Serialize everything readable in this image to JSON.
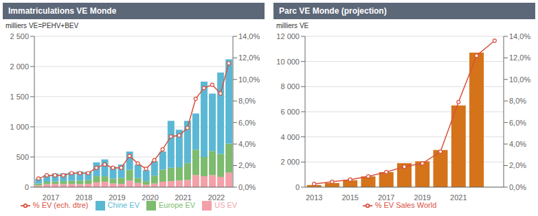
{
  "chart_data": [
    {
      "type": "bar",
      "title": "Immatriculations VE Monde",
      "ylabel": "milliers VE=PEHV+BEV",
      "categories": [
        null,
        "2017",
        null,
        null,
        null,
        "2018",
        null,
        null,
        null,
        "2019",
        null,
        null,
        null,
        "2020",
        null,
        null,
        null,
        "2021",
        null,
        null,
        null,
        "2022",
        null,
        null
      ],
      "series": [
        {
          "name": "US EV",
          "type": "bar",
          "color": "#f4a0a8",
          "values": [
            30,
            50,
            55,
            50,
            55,
            50,
            55,
            80,
            90,
            60,
            55,
            110,
            70,
            40,
            60,
            90,
            100,
            110,
            120,
            200,
            180,
            200,
            170,
            240
          ]
        },
        {
          "name": "Europe EV",
          "type": "bar",
          "color": "#7dbb6e",
          "values": [
            30,
            40,
            40,
            50,
            50,
            60,
            60,
            100,
            90,
            80,
            100,
            180,
            80,
            60,
            130,
            200,
            220,
            220,
            280,
            420,
            320,
            400,
            380,
            480
          ]
        },
        {
          "name": "Chine EV",
          "type": "bar",
          "color": "#5bb8d4",
          "values": [
            80,
            110,
            130,
            130,
            140,
            150,
            140,
            230,
            280,
            200,
            220,
            300,
            220,
            180,
            240,
            300,
            780,
            620,
            700,
            600,
            1250,
            950,
            1350,
            1400
          ]
        },
        {
          "name": "% EV (ech. dtre)",
          "type": "line",
          "axis": "y2",
          "color": "#d94f3d",
          "marker": "circle",
          "values": [
            0.008,
            0.011,
            0.011,
            0.011,
            0.013,
            0.013,
            0.013,
            0.018,
            0.021,
            0.018,
            0.018,
            0.029,
            0.022,
            0.017,
            0.025,
            0.035,
            0.047,
            0.048,
            0.055,
            0.082,
            0.092,
            0.095,
            0.087,
            0.115
          ]
        }
      ],
      "stacked": true,
      "ylim": [
        0,
        2500
      ],
      "yticks": [
        0,
        500,
        {
          "value": 1000,
          "label": "1 000"
        },
        {
          "value": 1500,
          "label": "1 500"
        },
        {
          "value": 2000,
          "label": "2 000"
        },
        {
          "value": 2500,
          "label": "2 500"
        }
      ],
      "y2lim": [
        0,
        0.14
      ],
      "y2ticks": [
        {
          "value": 0,
          "label": "0,0%"
        },
        {
          "value": 0.02,
          "label": "2,0%"
        },
        {
          "value": 0.04,
          "label": "4,0%"
        },
        {
          "value": 0.06,
          "label": "6,0%"
        },
        {
          "value": 0.08,
          "label": "8,0%"
        },
        {
          "value": 0.1,
          "label": "10,0%"
        },
        {
          "value": 0.12,
          "label": "12,0%"
        },
        {
          "value": 0.14,
          "label": "14,0%"
        }
      ],
      "grid": true,
      "legend": "bottom"
    },
    {
      "type": "bar",
      "title": "Parc VE Monde (projection)",
      "ylabel": "milliers VE",
      "categories": [
        "2013",
        null,
        "2015",
        null,
        "2017",
        null,
        "2019",
        null,
        "2021",
        null,
        null
      ],
      "series": [
        {
          "type": "bar",
          "color": "#d4731a",
          "values": [
            170,
            330,
            550,
            850,
            1200,
            1900,
            2050,
            2950,
            6500,
            10700,
            null
          ]
        },
        {
          "name": "% EV Sales World",
          "type": "line",
          "axis": "y2",
          "color": "#d94f3d",
          "marker": "circle",
          "values": [
            0.003,
            0.005,
            0.007,
            0.01,
            0.014,
            0.019,
            0.022,
            0.033,
            0.079,
            0.122,
            0.136
          ]
        }
      ],
      "ylim": [
        0,
        12000
      ],
      "yticks": [
        0,
        {
          "value": 2000,
          "label": "2 000"
        },
        {
          "value": 4000,
          "label": "4 000"
        },
        {
          "value": 6000,
          "label": "6 000"
        },
        {
          "value": 8000,
          "label": "8 000"
        },
        {
          "value": 10000,
          "label": "10 000"
        },
        {
          "value": 12000,
          "label": "12 000"
        }
      ],
      "y2lim": [
        0,
        0.14
      ],
      "y2ticks": [
        {
          "value": 0,
          "label": "0,0%"
        },
        {
          "value": 0.02,
          "label": "2,0%"
        },
        {
          "value": 0.04,
          "label": "4,0%"
        },
        {
          "value": 0.06,
          "label": "6,0%"
        },
        {
          "value": 0.08,
          "label": "8,0%"
        },
        {
          "value": 0.1,
          "label": "10,0%"
        },
        {
          "value": 0.12,
          "label": "12,0%"
        },
        {
          "value": 0.14,
          "label": "14,0%"
        }
      ],
      "grid": true,
      "legend": "bottom"
    }
  ]
}
